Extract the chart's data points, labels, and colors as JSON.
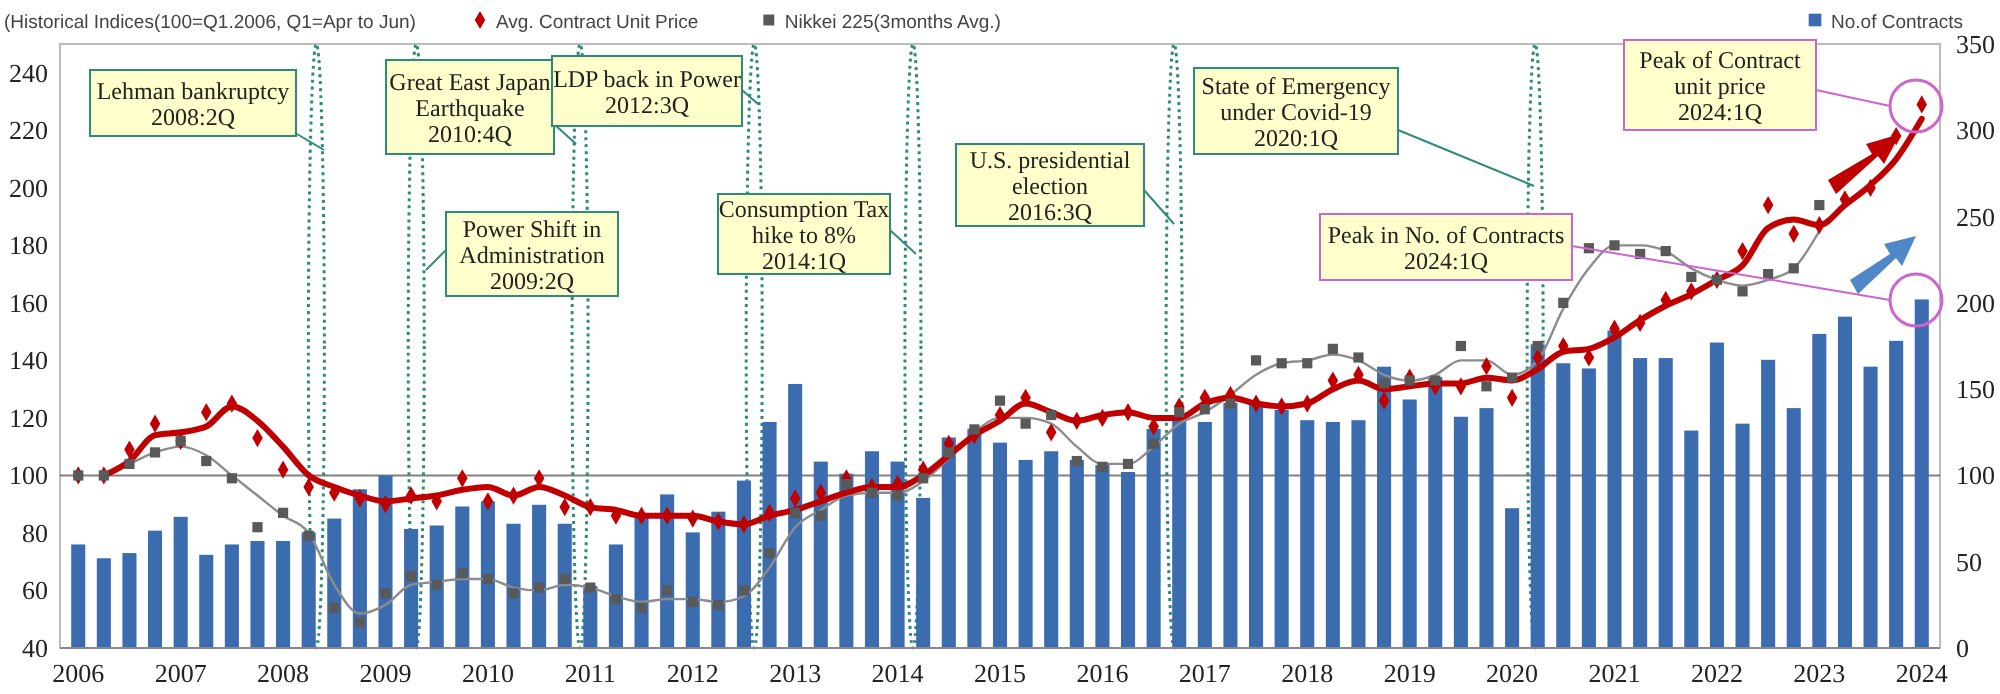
{
  "chart_data": {
    "type": "bar",
    "categories": [
      "2006",
      null,
      null,
      null,
      "2007",
      null,
      null,
      null,
      "2008",
      null,
      null,
      null,
      "2009",
      null,
      null,
      null,
      "2010",
      null,
      null,
      null,
      "2011",
      null,
      null,
      null,
      "2012",
      null,
      null,
      null,
      "2013",
      null,
      null,
      null,
      "2014",
      null,
      null,
      null,
      "2015",
      null,
      null,
      null,
      "2016",
      null,
      null,
      null,
      "2017",
      null,
      null,
      null,
      "2018",
      null,
      null,
      null,
      "2019",
      null,
      null,
      null,
      "2020",
      null,
      null,
      null,
      "2021",
      null,
      null,
      null,
      "2022",
      null,
      null,
      null,
      "2023",
      null,
      null,
      null,
      "2024"
    ],
    "series": [
      {
        "name": "No.of Contracts",
        "color": "#3c6cb0",
        "axis": "y2",
        "values": [
          60,
          52,
          55,
          68,
          76,
          54,
          60,
          62,
          62,
          67,
          75,
          92,
          100,
          69,
          71,
          82,
          85,
          72,
          83,
          72,
          36,
          60,
          76,
          89,
          67,
          79,
          97,
          131,
          153,
          108,
          101,
          114,
          108,
          87,
          122,
          127,
          119,
          109,
          114,
          109,
          106,
          102,
          127,
          132,
          131,
          142,
          141,
          138,
          132,
          131,
          132,
          163,
          144,
          157,
          134,
          139,
          81,
          176,
          165,
          162,
          184,
          168,
          168,
          126,
          177,
          130,
          167,
          139,
          182,
          192,
          163,
          178,
          202
        ]
      },
      {
        "type": "line",
        "color": "#8c8c8c",
        "marker": "none",
        "values": [
          null,
          100,
          104,
          108,
          110,
          107,
          100,
          93,
          86,
          80,
          62,
          52,
          55,
          62,
          63,
          64,
          64,
          61,
          60,
          62,
          61,
          58,
          56,
          57,
          57,
          56,
          58,
          68,
          82,
          88,
          93,
          94,
          94,
          98,
          106,
          115,
          120,
          120,
          118,
          110,
          104,
          104,
          110,
          118,
          122,
          128,
          135,
          139,
          140,
          142,
          140,
          135,
          133,
          135,
          140,
          140,
          135,
          140,
          158,
          172,
          180,
          180,
          178,
          172,
          168,
          166,
          168,
          172,
          185,
          null,
          null,
          null,
          null
        ]
      },
      {
        "type": "line",
        "color": "#c00000",
        "marker": "none",
        "values": [
          null,
          100,
          105,
          114,
          115,
          117,
          124,
          119,
          110,
          100,
          96,
          93,
          91,
          92,
          93,
          95,
          96,
          93,
          96,
          93,
          89,
          88,
          86,
          86,
          86,
          84,
          83,
          86,
          88,
          91,
          94,
          96,
          96,
          100,
          107,
          114,
          119,
          125,
          122,
          119,
          121,
          122,
          120,
          120,
          125,
          127,
          125,
          124,
          125,
          130,
          133,
          130,
          131,
          132,
          132,
          134,
          133,
          137,
          143,
          144,
          148,
          154,
          159,
          163,
          168,
          173,
          186,
          189,
          187,
          194,
          201,
          210,
          224
        ]
      },
      {
        "type": "scatter",
        "name": "Avg. Contract Unit Price",
        "color": "#c00000",
        "marker": "diamond",
        "values": [
          100,
          100,
          109,
          118,
          112,
          122,
          125,
          113,
          102,
          96,
          94,
          92,
          90,
          93,
          91,
          99,
          91,
          93,
          99,
          89,
          89,
          86,
          86,
          86,
          85,
          84,
          83,
          87,
          92,
          94,
          99,
          96,
          97,
          102,
          111,
          114,
          121,
          127,
          115,
          119,
          120,
          122,
          117,
          124,
          127,
          128,
          125,
          124,
          125,
          133,
          135,
          126,
          134,
          131,
          131,
          138,
          127,
          141,
          145,
          141,
          151,
          153,
          161,
          164,
          168,
          178,
          194,
          184,
          187,
          196,
          200,
          218,
          229
        ]
      },
      {
        "type": "scatter",
        "name": "Nikkei 225(3months Avg.)",
        "color": "#595959",
        "marker": "square",
        "values": [
          100,
          100,
          104,
          108,
          112,
          105,
          99,
          82,
          87,
          79,
          54,
          49,
          59,
          65,
          62,
          66,
          64,
          59,
          61,
          64,
          61,
          57,
          54,
          60,
          56,
          55,
          60,
          73,
          87,
          86,
          97,
          94,
          93,
          99,
          108,
          116,
          126,
          118,
          121,
          105,
          103,
          104,
          111,
          122,
          123,
          125,
          140,
          139,
          139,
          144,
          141,
          132,
          133,
          133,
          145,
          131,
          134,
          145,
          160,
          179,
          180,
          177,
          178,
          169,
          168,
          164,
          170,
          172,
          194,
          null,
          null,
          null,
          null
        ]
      }
    ],
    "ylim": [
      40,
      250
    ],
    "yticks": [
      40,
      60,
      80,
      100,
      120,
      140,
      160,
      180,
      200,
      220,
      240
    ],
    "y2lim": [
      0,
      350
    ],
    "y2ticks": [
      0,
      50,
      100,
      150,
      200,
      250,
      300,
      350
    ],
    "ref_lines": [
      {
        "axis": "y",
        "value": 100,
        "color": "#808080"
      }
    ],
    "legend": "top",
    "annotations": [
      "(Historical Indices(100=Q1.2006, Q1=Apr to Jun)",
      "Lehman bankruptcy\n2008:2Q",
      "Great East Japan\nEarthquake\n2010:4Q",
      "LDP back in Power\n2012:3Q",
      "Power Shift in\nAdministration\n2009:2Q",
      "Consumption Tax\nhike to 8%\n2014:1Q",
      "U.S. presidential\nelection\n2016:3Q",
      "State of Emergency\nunder Covid-19\n2020:1Q",
      "Peak in No. of Contracts\n2024:1Q",
      "Peak of Contract\nunit price\n2024:1Q"
    ]
  }
}
